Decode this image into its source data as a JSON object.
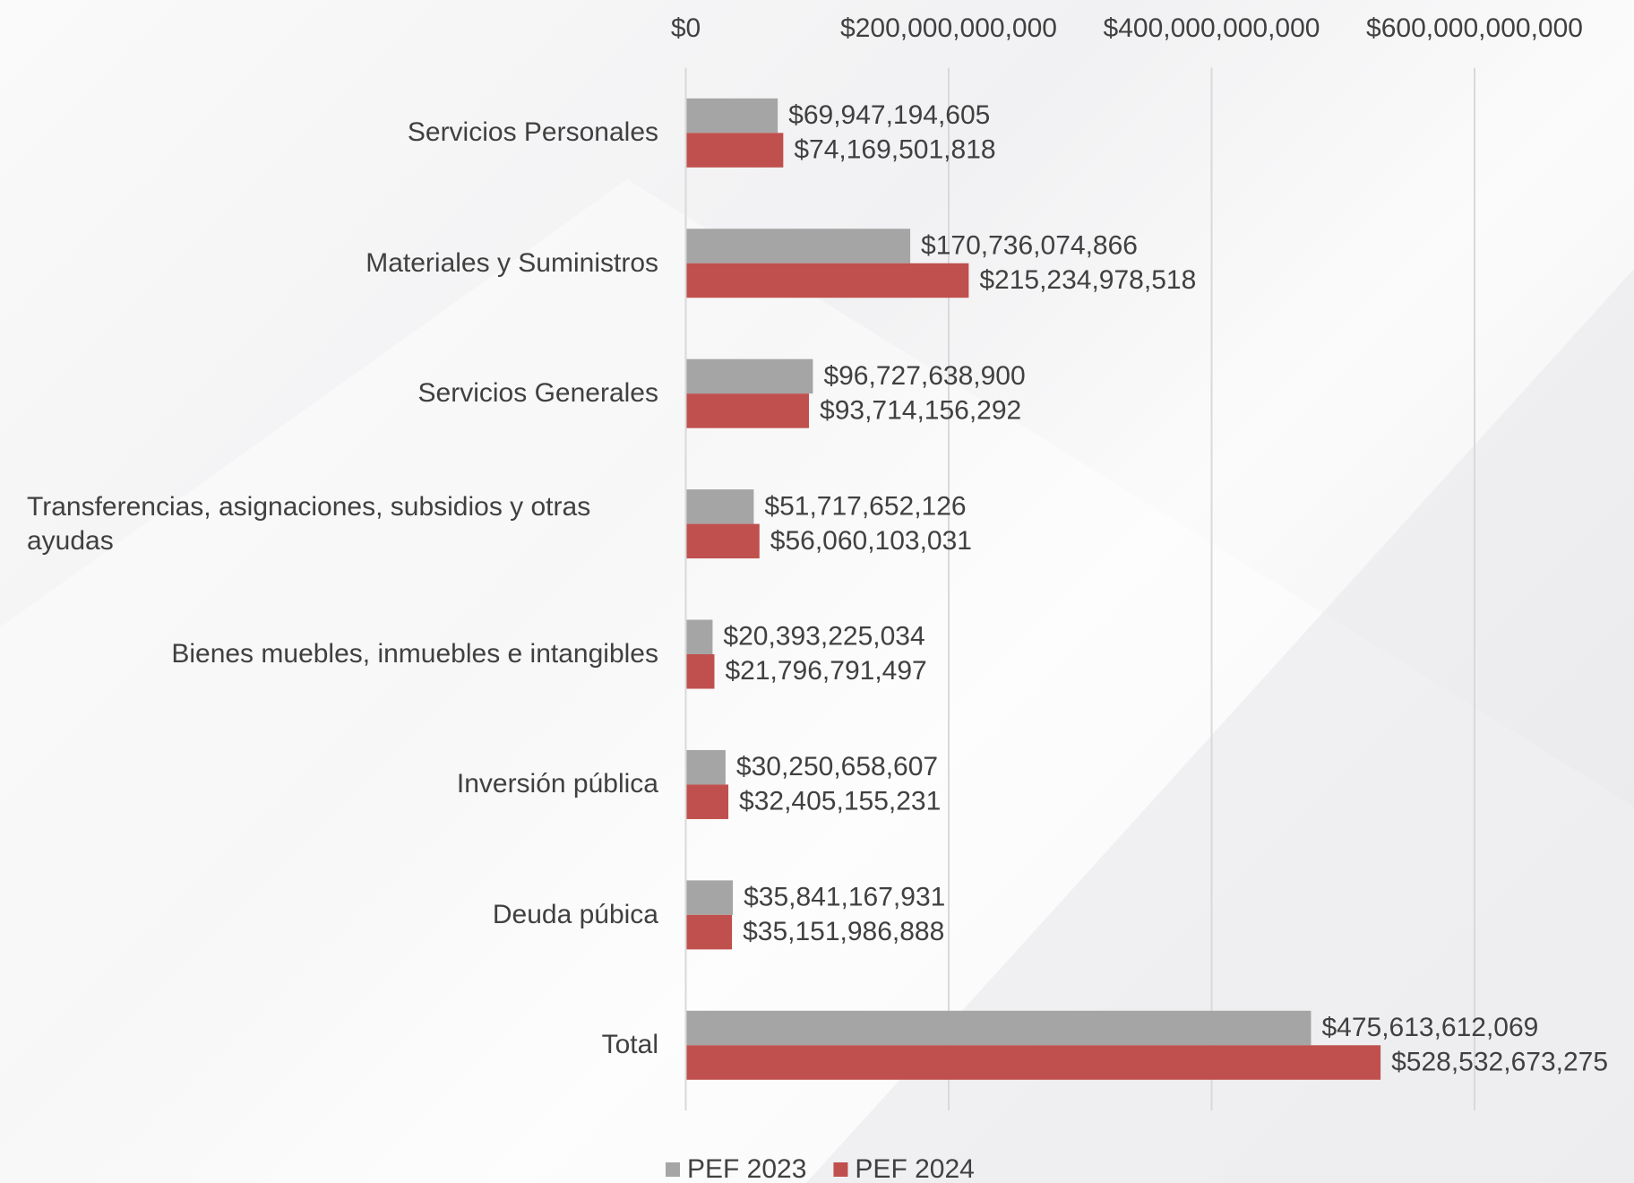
{
  "chart_data": {
    "type": "bar",
    "orientation": "horizontal",
    "categories": [
      "Servicios Personales",
      "Materiales y Suministros",
      "Servicios Generales",
      "Transferencias, asignaciones, subsidios y otras ayudas",
      "Bienes muebles, inmuebles e intangibles",
      "Inversión pública",
      "Deuda púbica",
      "Total"
    ],
    "series": [
      {
        "name": "PEF 2023",
        "color": "#a5a5a5",
        "values": [
          69947194605,
          170736074866,
          96727638900,
          51717652126,
          20393225034,
          30250658607,
          35841167931,
          475613612069
        ],
        "value_labels": [
          "$69,947,194,605",
          "$170,736,074,866",
          "$96,727,638,900",
          "$51,717,652,126",
          "$20,393,225,034",
          "$30,250,658,607",
          "$35,841,167,931",
          "$475,613,612,069"
        ]
      },
      {
        "name": "PEF 2024",
        "color": "#c0504d",
        "values": [
          74169501818,
          215234978518,
          93714156292,
          56060103031,
          21796791497,
          32405155231,
          35151986888,
          528532673275
        ],
        "value_labels": [
          "$74,169,501,818",
          "$215,234,978,518",
          "$93,714,156,292",
          "$56,060,103,031",
          "$21,796,791,497",
          "$32,405,155,231",
          "$35,151,986,888",
          "$528,532,673,275"
        ]
      }
    ],
    "xlim": [
      0,
      600000000000
    ],
    "xticks": [
      {
        "value": 0,
        "label": "$0"
      },
      {
        "value": 200000000000,
        "label": "$200,000,000,000"
      },
      {
        "value": 400000000000,
        "label": "$400,000,000,000"
      },
      {
        "value": 600000000000,
        "label": "$600,000,000,000"
      }
    ],
    "grid": true,
    "legend": "bottom"
  }
}
